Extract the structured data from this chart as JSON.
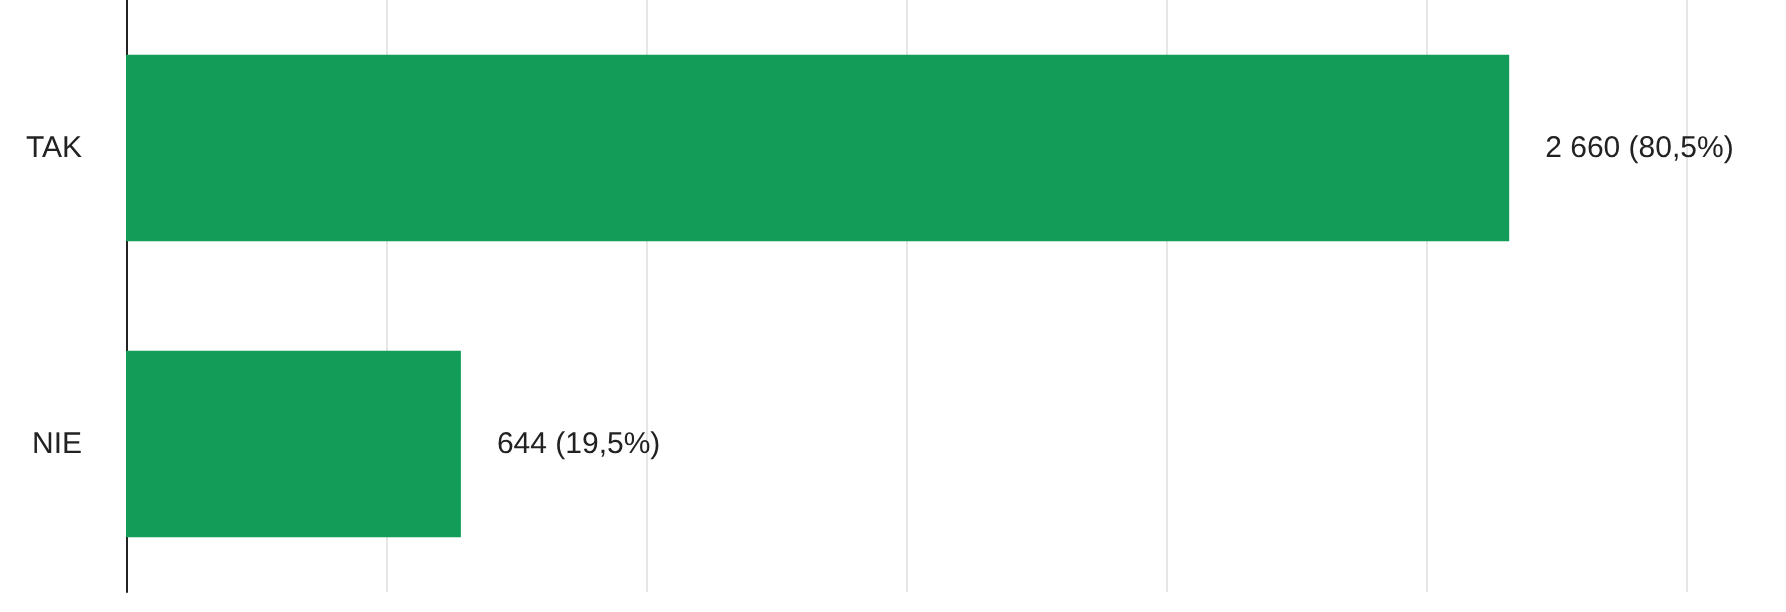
{
  "chart_data": {
    "type": "bar",
    "orientation": "horizontal",
    "categories": [
      "TAK",
      "NIE"
    ],
    "values": [
      2660,
      644
    ],
    "value_labels": [
      "2 660 (80,5%)",
      "644 (19,5%)"
    ],
    "color": "#129c58",
    "xlim": [
      0,
      3000
    ],
    "xticks": [
      {
        "value": 0,
        "label": null
      },
      {
        "value": 500,
        "label": null
      },
      {
        "value": 1000,
        "label": null
      },
      {
        "value": 1500,
        "label": null
      },
      {
        "value": 2000,
        "label": null
      },
      {
        "value": 2500,
        "label": null
      },
      {
        "value": 3000,
        "label": null
      }
    ],
    "grid": "x",
    "tick_labels": "y"
  }
}
